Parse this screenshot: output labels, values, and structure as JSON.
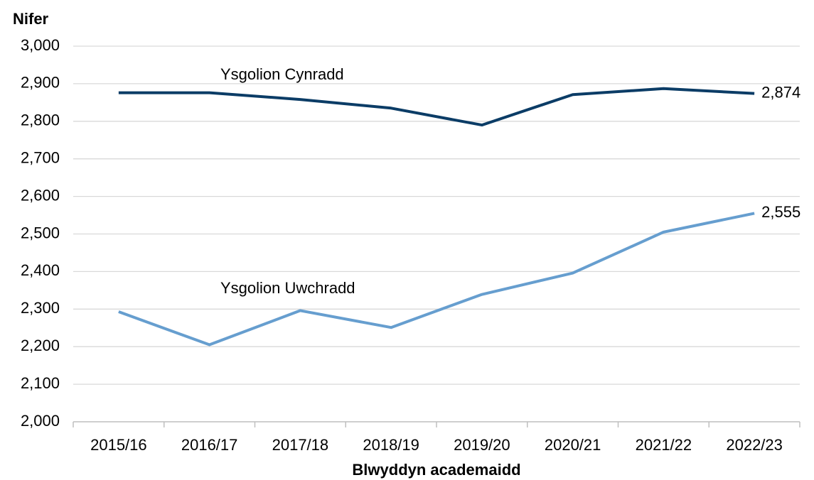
{
  "chart_data": {
    "type": "line",
    "ylabel": "Nifer",
    "xlabel": "Blwyddyn academaidd",
    "categories": [
      "2015/16",
      "2016/17",
      "2017/18",
      "2018/19",
      "2019/20",
      "2020/21",
      "2021/22",
      "2022/23"
    ],
    "series": [
      {
        "name": "Ysgolion Cynradd",
        "color": "#0b3c66",
        "values": [
          2876,
          2876,
          2858,
          2835,
          2790,
          2871,
          2887,
          2874
        ],
        "value_labels": [
          null,
          null,
          null,
          null,
          null,
          null,
          null,
          "2,874"
        ]
      },
      {
        "name": "Ysgolion Uwchradd",
        "color": "#669ecf",
        "values": [
          2293,
          2205,
          2296,
          2251,
          2339,
          2396,
          2505,
          2555
        ],
        "value_labels": [
          null,
          null,
          null,
          null,
          null,
          null,
          null,
          "2,555"
        ]
      }
    ],
    "ylim": [
      2000,
      3000
    ],
    "yticks": [
      {
        "value": 2000,
        "label": "2,000"
      },
      {
        "value": 2100,
        "label": "2,100"
      },
      {
        "value": 2200,
        "label": "2,200"
      },
      {
        "value": 2300,
        "label": "2,300"
      },
      {
        "value": 2400,
        "label": "2,400"
      },
      {
        "value": 2500,
        "label": "2,500"
      },
      {
        "value": 2600,
        "label": "2,600"
      },
      {
        "value": 2700,
        "label": "2,700"
      },
      {
        "value": 2800,
        "label": "2,800"
      },
      {
        "value": 2900,
        "label": "2,900"
      },
      {
        "value": 3000,
        "label": "3,000"
      }
    ],
    "grid": true
  }
}
